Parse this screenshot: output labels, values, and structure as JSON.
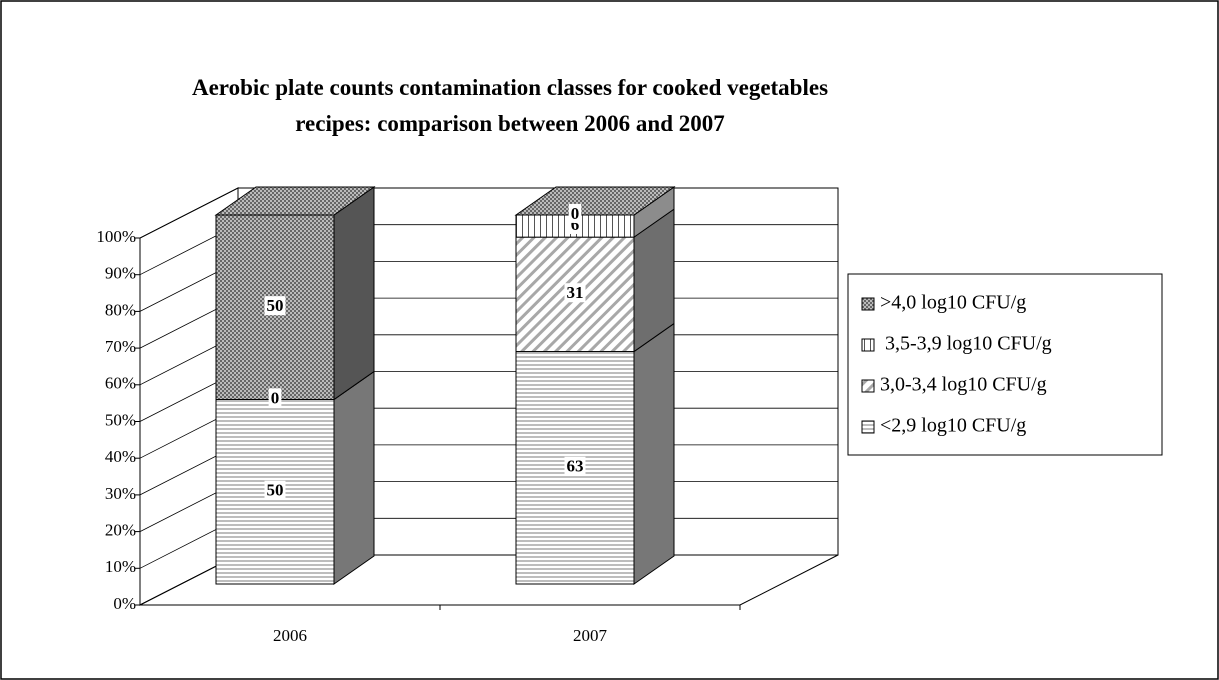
{
  "chart_data": {
    "type": "bar3d_stacked",
    "title": "Aerobic plate counts contamination classes for cooked vegetables recipes: comparison between 2006 and 2007",
    "categories": [
      "2006",
      "2007"
    ],
    "series": [
      {
        "name": "<2,9 log10 CFU/g",
        "color": "#d9d9d9",
        "pattern": "horizontal",
        "values": [
          50,
          63
        ]
      },
      {
        "name": "3,0-3,4 log10 CFU/g",
        "color": "#c8c8c8",
        "pattern": "diagonal",
        "values": [
          0,
          31
        ]
      },
      {
        "name": " 3,5-3,9 log10 CFU/g",
        "color": "#ffffff",
        "pattern": "vertical",
        "values": [
          0,
          6
        ]
      },
      {
        "name": ">4,0 log10 CFU/g",
        "color": "#9a9a9a",
        "pattern": "checker",
        "values": [
          50,
          0
        ]
      }
    ],
    "ylim": [
      0,
      100
    ],
    "yticks": [
      {
        "value": 0,
        "label": "0%"
      },
      {
        "value": 10,
        "label": "10%"
      },
      {
        "value": 20,
        "label": "20%"
      },
      {
        "value": 30,
        "label": "30%"
      },
      {
        "value": 40,
        "label": "40%"
      },
      {
        "value": 50,
        "label": "50%"
      },
      {
        "value": 60,
        "label": "60%"
      },
      {
        "value": 70,
        "label": "70%"
      },
      {
        "value": 80,
        "label": "80%"
      },
      {
        "value": 90,
        "label": "90%"
      },
      {
        "value": 100,
        "label": "100%"
      }
    ],
    "grid": true,
    "legend": "right"
  }
}
